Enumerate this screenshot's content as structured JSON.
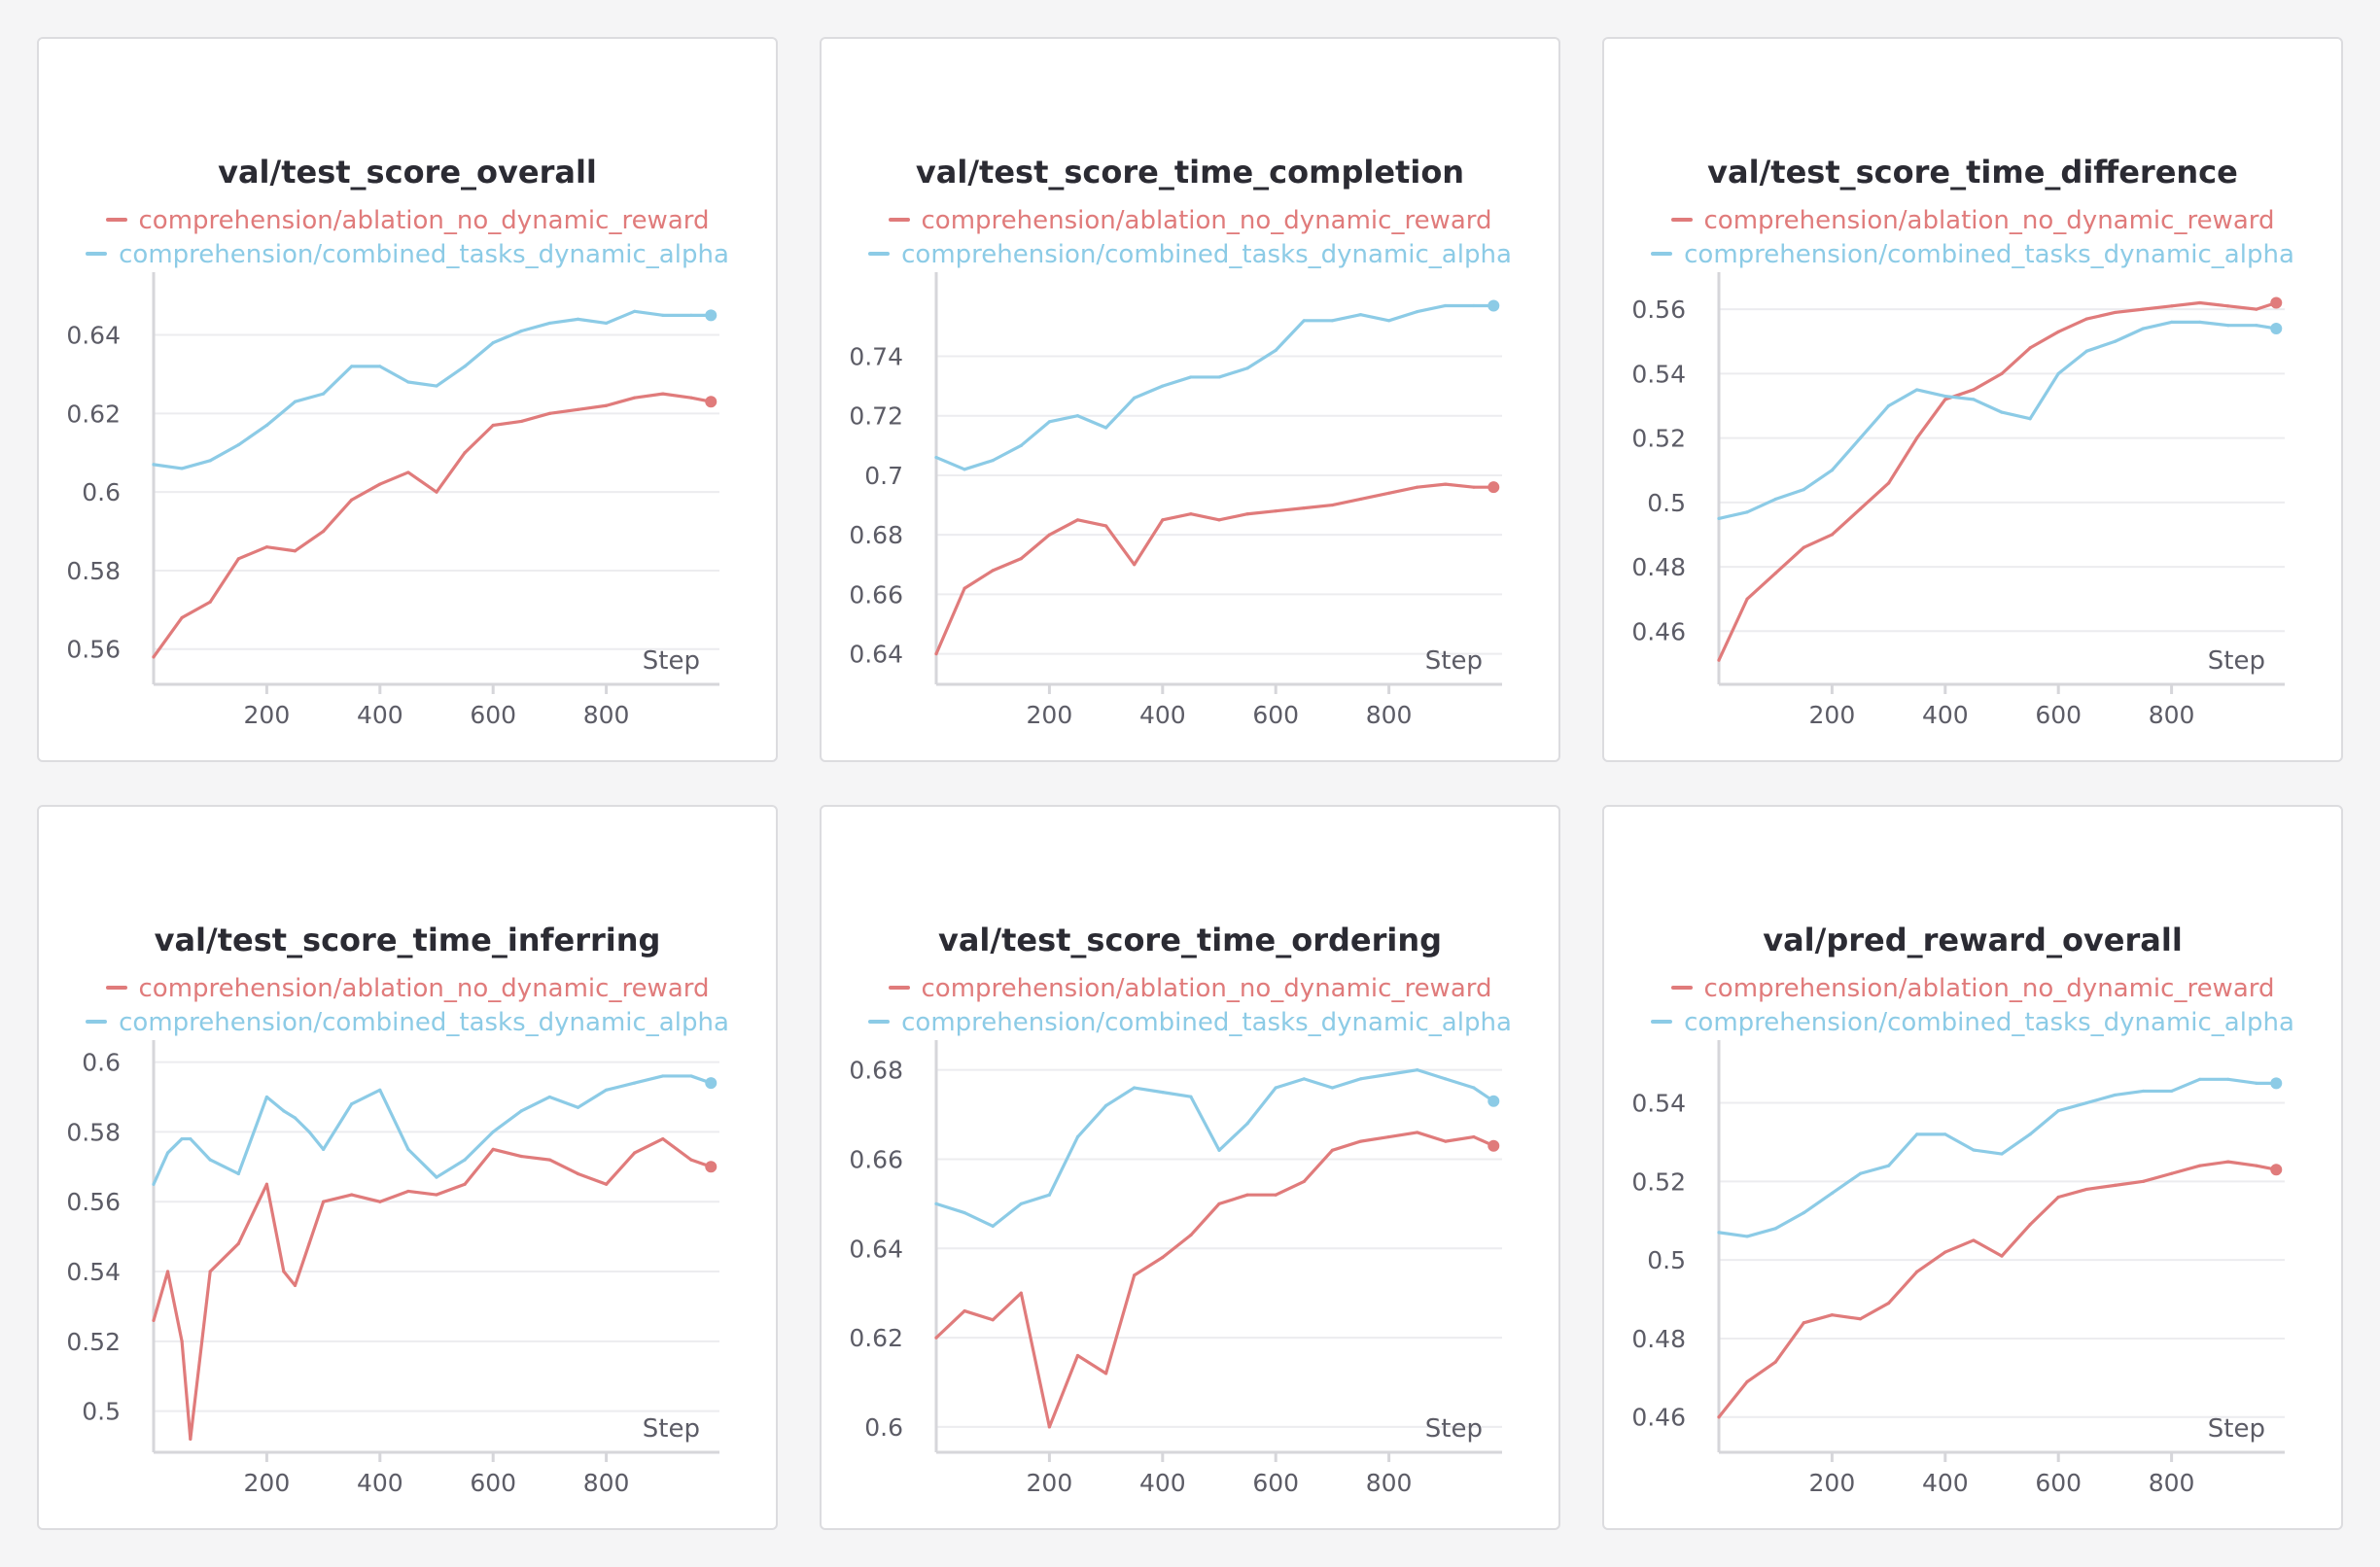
{
  "legend": {
    "series_a": "comprehension/ablation_no_dynamic_reward",
    "series_b": "comprehension/combined_tasks_dynamic_alpha"
  },
  "colors": {
    "series_a": "#e07b7b",
    "series_b": "#8ccbe6"
  },
  "x_axis_label": "Step",
  "chart_data": [
    {
      "type": "line",
      "title": "val/test_score_overall",
      "xlabel": "Step",
      "xticks": [
        200,
        400,
        600,
        800
      ],
      "yticks": [
        0.56,
        0.58,
        0.6,
        0.62,
        0.64
      ],
      "ytick_labels": [
        "0.56",
        "0.58",
        "0.6",
        "0.62",
        "0.64"
      ],
      "ylim": [
        0.5535,
        0.6535
      ],
      "grid": true,
      "x": [
        0,
        50,
        100,
        150,
        200,
        250,
        300,
        350,
        400,
        450,
        500,
        550,
        600,
        650,
        700,
        750,
        800,
        850,
        900,
        950,
        985
      ],
      "series": [
        {
          "name": "comprehension/ablation_no_dynamic_reward",
          "values": [
            0.558,
            0.568,
            0.572,
            0.583,
            0.586,
            0.585,
            0.59,
            0.598,
            0.602,
            0.605,
            0.6,
            0.61,
            0.617,
            0.618,
            0.62,
            0.621,
            0.622,
            0.624,
            0.625,
            0.624,
            0.623
          ]
        },
        {
          "name": "comprehension/combined_tasks_dynamic_alpha",
          "values": [
            0.607,
            0.606,
            0.608,
            0.612,
            0.617,
            0.623,
            0.625,
            0.632,
            0.632,
            0.628,
            0.627,
            0.632,
            0.638,
            0.641,
            0.643,
            0.644,
            0.643,
            0.646,
            0.645,
            0.645,
            0.645
          ]
        }
      ]
    },
    {
      "type": "line",
      "title": "val/test_score_time_completion",
      "xlabel": "Step",
      "xticks": [
        200,
        400,
        600,
        800
      ],
      "yticks": [
        0.64,
        0.66,
        0.68,
        0.7,
        0.72,
        0.74
      ],
      "ytick_labels": [
        "0.64",
        "0.66",
        "0.68",
        "0.7",
        "0.72",
        "0.74"
      ],
      "ylim": [
        0.633,
        0.765
      ],
      "grid": true,
      "x": [
        0,
        50,
        100,
        150,
        200,
        250,
        300,
        350,
        400,
        450,
        500,
        550,
        600,
        650,
        700,
        750,
        800,
        850,
        900,
        950,
        985
      ],
      "series": [
        {
          "name": "comprehension/ablation_no_dynamic_reward",
          "values": [
            0.64,
            0.662,
            0.668,
            0.672,
            0.68,
            0.685,
            0.683,
            0.67,
            0.685,
            0.687,
            0.685,
            0.687,
            0.688,
            0.689,
            0.69,
            0.692,
            0.694,
            0.696,
            0.697,
            0.696,
            0.696
          ]
        },
        {
          "name": "comprehension/combined_tasks_dynamic_alpha",
          "values": [
            0.706,
            0.702,
            0.705,
            0.71,
            0.718,
            0.72,
            0.716,
            0.726,
            0.73,
            0.733,
            0.733,
            0.736,
            0.742,
            0.752,
            0.752,
            0.754,
            0.752,
            0.755,
            0.757,
            0.757,
            0.757
          ]
        }
      ]
    },
    {
      "type": "line",
      "title": "val/test_score_time_difference",
      "xlabel": "Step",
      "xticks": [
        200,
        400,
        600,
        800
      ],
      "yticks": [
        0.46,
        0.48,
        0.5,
        0.52,
        0.54,
        0.56
      ],
      "ytick_labels": [
        "0.46",
        "0.48",
        "0.5",
        "0.52",
        "0.54",
        "0.56"
      ],
      "ylim": [
        0.4465,
        0.5685
      ],
      "grid": true,
      "x": [
        0,
        50,
        100,
        150,
        200,
        250,
        300,
        350,
        400,
        450,
        500,
        550,
        600,
        650,
        700,
        750,
        800,
        850,
        900,
        950,
        985
      ],
      "series": [
        {
          "name": "comprehension/ablation_no_dynamic_reward",
          "values": [
            0.451,
            0.47,
            0.478,
            0.486,
            0.49,
            0.498,
            0.506,
            0.52,
            0.532,
            0.535,
            0.54,
            0.548,
            0.553,
            0.557,
            0.559,
            0.56,
            0.561,
            0.562,
            0.561,
            0.56,
            0.562
          ]
        },
        {
          "name": "comprehension/combined_tasks_dynamic_alpha",
          "values": [
            0.495,
            0.497,
            0.501,
            0.504,
            0.51,
            0.52,
            0.53,
            0.535,
            0.533,
            0.532,
            0.528,
            0.526,
            0.54,
            0.547,
            0.55,
            0.554,
            0.556,
            0.556,
            0.555,
            0.555,
            0.554
          ]
        }
      ]
    },
    {
      "type": "line",
      "title": "val/test_score_time_inferring",
      "xlabel": "Step",
      "xticks": [
        200,
        400,
        600,
        800
      ],
      "yticks": [
        0.5,
        0.52,
        0.54,
        0.56,
        0.58,
        0.6
      ],
      "ytick_labels": [
        "0.5",
        "0.52",
        "0.54",
        "0.56",
        "0.58",
        "0.6"
      ],
      "ylim": [
        0.491,
        0.6035
      ],
      "grid": true,
      "x": [
        0,
        25,
        50,
        65,
        100,
        150,
        200,
        230,
        250,
        275,
        300,
        350,
        400,
        450,
        500,
        550,
        600,
        650,
        700,
        750,
        800,
        850,
        900,
        950,
        985
      ],
      "series": [
        {
          "name": "comprehension/ablation_no_dynamic_reward",
          "values": [
            0.526,
            0.54,
            0.52,
            0.492,
            0.54,
            0.548,
            0.565,
            0.54,
            0.536,
            0.548,
            0.56,
            0.562,
            0.56,
            0.563,
            0.562,
            0.565,
            0.575,
            0.573,
            0.572,
            0.568,
            0.565,
            0.574,
            0.578,
            0.572,
            0.57
          ]
        },
        {
          "name": "comprehension/combined_tasks_dynamic_alpha",
          "values": [
            0.565,
            0.574,
            0.578,
            0.578,
            0.572,
            0.568,
            0.59,
            0.586,
            0.584,
            0.58,
            0.575,
            0.588,
            0.592,
            0.575,
            0.567,
            0.572,
            0.58,
            0.586,
            0.59,
            0.587,
            0.592,
            0.594,
            0.596,
            0.596,
            0.594
          ]
        }
      ]
    },
    {
      "type": "line",
      "title": "val/test_score_time_ordering",
      "xlabel": "Step",
      "xticks": [
        200,
        400,
        600,
        800
      ],
      "yticks": [
        0.6,
        0.62,
        0.64,
        0.66,
        0.68
      ],
      "ytick_labels": [
        "0.6",
        "0.62",
        "0.64",
        "0.66",
        "0.68"
      ],
      "ylim": [
        0.5965,
        0.6845
      ],
      "grid": true,
      "x": [
        0,
        50,
        100,
        150,
        200,
        250,
        300,
        350,
        400,
        450,
        500,
        550,
        600,
        650,
        700,
        750,
        800,
        850,
        900,
        950,
        985
      ],
      "series": [
        {
          "name": "comprehension/ablation_no_dynamic_reward",
          "values": [
            0.62,
            0.626,
            0.624,
            0.63,
            0.6,
            0.616,
            0.612,
            0.634,
            0.638,
            0.643,
            0.65,
            0.652,
            0.652,
            0.655,
            0.662,
            0.664,
            0.665,
            0.666,
            0.664,
            0.665,
            0.663
          ]
        },
        {
          "name": "comprehension/combined_tasks_dynamic_alpha",
          "values": [
            0.65,
            0.648,
            0.645,
            0.65,
            0.652,
            0.665,
            0.672,
            0.676,
            0.675,
            0.674,
            0.662,
            0.668,
            0.676,
            0.678,
            0.676,
            0.678,
            0.679,
            0.68,
            0.678,
            0.676,
            0.673
          ]
        }
      ]
    },
    {
      "type": "line",
      "title": "val/pred_reward_overall",
      "xlabel": "Step",
      "xticks": [
        200,
        400,
        600,
        800
      ],
      "yticks": [
        0.46,
        0.48,
        0.5,
        0.52,
        0.54
      ],
      "ytick_labels": [
        "0.46",
        "0.48",
        "0.5",
        "0.52",
        "0.54"
      ],
      "ylim": [
        0.4535,
        0.5535
      ],
      "grid": true,
      "x": [
        0,
        50,
        100,
        150,
        200,
        250,
        300,
        350,
        400,
        450,
        500,
        550,
        600,
        650,
        700,
        750,
        800,
        850,
        900,
        950,
        985
      ],
      "series": [
        {
          "name": "comprehension/ablation_no_dynamic_reward",
          "values": [
            0.46,
            0.469,
            0.474,
            0.484,
            0.486,
            0.485,
            0.489,
            0.497,
            0.502,
            0.505,
            0.501,
            0.509,
            0.516,
            0.518,
            0.519,
            0.52,
            0.522,
            0.524,
            0.525,
            0.524,
            0.523
          ]
        },
        {
          "name": "comprehension/combined_tasks_dynamic_alpha",
          "values": [
            0.507,
            0.506,
            0.508,
            0.512,
            0.517,
            0.522,
            0.524,
            0.532,
            0.532,
            0.528,
            0.527,
            0.532,
            0.538,
            0.54,
            0.542,
            0.543,
            0.543,
            0.546,
            0.546,
            0.545,
            0.545
          ]
        }
      ]
    }
  ]
}
